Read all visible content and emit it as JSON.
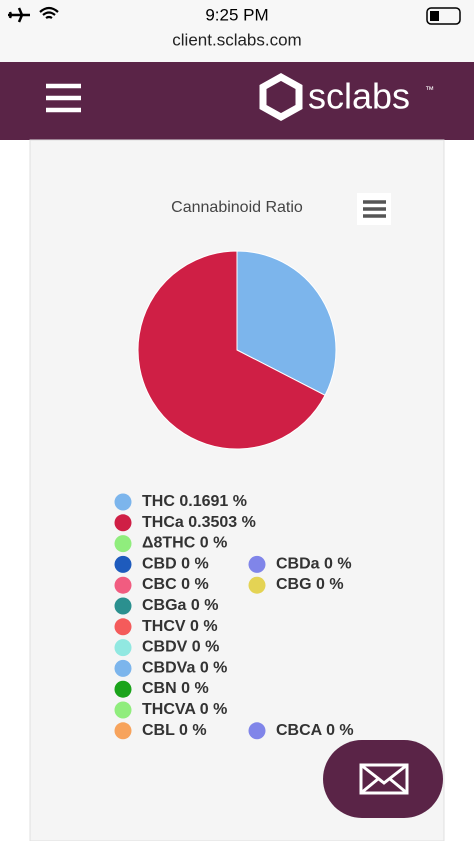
{
  "status_bar": {
    "time": "9:25 PM"
  },
  "url": "client.sclabs.com",
  "header": {
    "logo": "sclabs",
    "trademark": "™"
  },
  "chart_data": {
    "type": "pie",
    "title": "Cannabinoid Ratio",
    "categories": [
      "THC",
      "THCa",
      "Δ8THC",
      "CBD",
      "CBDa",
      "CBC",
      "CBG",
      "CBGa",
      "THCV",
      "CBDV",
      "CBDVa",
      "CBN",
      "THCVA",
      "CBL",
      "CBCA"
    ],
    "values": [
      0.1691,
      0.3503,
      0,
      0,
      0,
      0,
      0,
      0,
      0,
      0,
      0,
      0,
      0,
      0,
      0
    ],
    "value_labels": [
      "0.1691 %",
      "0.3503 %",
      "0 %",
      "0 %",
      "0 %",
      "0 %",
      "0 %",
      "0 %",
      "0 %",
      "0 %",
      "0 %",
      "0 %",
      "0 %",
      "0 %",
      "0 %"
    ],
    "colors": [
      "#7cb5ec",
      "#cf1f45",
      "#90ed7d",
      "#1e5bbd",
      "#8085e9",
      "#f15c80",
      "#e4d354",
      "#2b908f",
      "#f45b5b",
      "#91e8e1",
      "#7cb5ec",
      "#1aa31a",
      "#90ed7d",
      "#f7a35c",
      "#8085e9"
    ]
  }
}
